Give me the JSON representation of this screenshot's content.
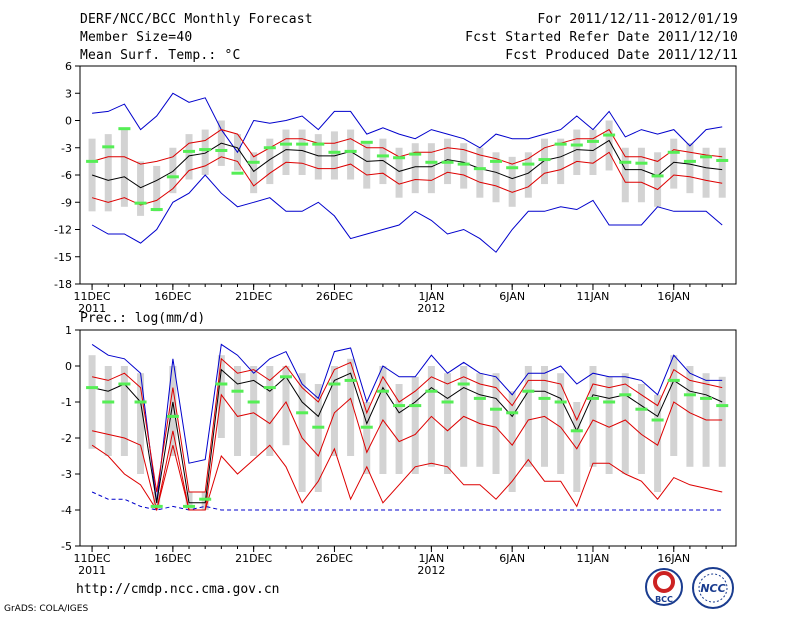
{
  "header": {
    "title": "DERF/NCC/BCC Monthly Forecast",
    "member": "Member Size=40",
    "variable": "Mean Surf. Temp.: °C",
    "range": "For 2011/12/11-2012/01/19",
    "started": "Fcst Started Refer Date 2011/12/10",
    "produced": "Fcst Produced Date 2011/12/11"
  },
  "footer": {
    "url": "http://cmdp.ncc.cma.gov.cn",
    "credit": "GrADS: COLA/IGES"
  },
  "logos": {
    "bcc": "BCC",
    "ncc": "NCC"
  },
  "colors": {
    "box": "#d3d3d3",
    "median": "#55ee55",
    "mean": "#000000",
    "inner": "#dd0000",
    "outer": "#0000cc"
  },
  "chart_data": [
    {
      "type": "box",
      "title": "Mean Surf. Temp.: °C",
      "ylim": [
        -18,
        6
      ],
      "yticks": [
        6,
        3,
        0,
        -3,
        -6,
        -9,
        -12,
        -15,
        -18
      ],
      "xtick_labels": [
        {
          "day": 1,
          "label": "11DEC",
          "sub": "2011"
        },
        {
          "day": 6,
          "label": "16DEC",
          "sub": ""
        },
        {
          "day": 11,
          "label": "21DEC",
          "sub": ""
        },
        {
          "day": 16,
          "label": "26DEC",
          "sub": ""
        },
        {
          "day": 22,
          "label": "1JAN",
          "sub": "2012"
        },
        {
          "day": 27,
          "label": "6JAN",
          "sub": ""
        },
        {
          "day": 32,
          "label": "11JAN",
          "sub": ""
        },
        {
          "day": 37,
          "label": "16JAN",
          "sub": ""
        }
      ],
      "days": 40,
      "mean": [
        -6.0,
        -6.6,
        -6.2,
        -7.4,
        -6.6,
        -5.6,
        -3.9,
        -3.6,
        -2.5,
        -3.0,
        -5.6,
        -4.3,
        -3.2,
        -3.3,
        -3.9,
        -3.9,
        -3.4,
        -4.5,
        -4.4,
        -5.6,
        -5.1,
        -5.1,
        -4.3,
        -4.6,
        -5.3,
        -5.7,
        -6.4,
        -5.8,
        -4.4,
        -4.0,
        -3.2,
        -3.3,
        -2.2,
        -5.4,
        -5.4,
        -6.1,
        -4.6,
        -4.8,
        -5.2,
        -5.4
      ],
      "upper_inner": [
        -4.5,
        -4.0,
        -4.0,
        -4.8,
        -4.5,
        -4.0,
        -2.5,
        -2.2,
        -1.0,
        -1.5,
        -4.0,
        -3.0,
        -2.0,
        -2.0,
        -2.5,
        -2.5,
        -2.0,
        -3.0,
        -3.0,
        -4.0,
        -3.5,
        -3.5,
        -3.0,
        -3.2,
        -3.8,
        -4.2,
        -4.8,
        -4.2,
        -3.0,
        -2.5,
        -2.0,
        -2.0,
        -1.0,
        -4.0,
        -4.0,
        -4.5,
        -3.2,
        -3.5,
        -3.8,
        -4.0
      ],
      "lower_inner": [
        -8.5,
        -9.0,
        -8.5,
        -9.3,
        -8.8,
        -7.5,
        -5.5,
        -5.0,
        -4.0,
        -4.5,
        -7.2,
        -5.8,
        -4.6,
        -4.7,
        -5.3,
        -5.3,
        -4.8,
        -6.0,
        -5.8,
        -7.0,
        -6.5,
        -6.6,
        -5.7,
        -6.0,
        -6.8,
        -7.2,
        -7.9,
        -7.3,
        -5.8,
        -5.4,
        -4.5,
        -4.7,
        -3.5,
        -6.8,
        -6.8,
        -7.6,
        -6.0,
        -6.2,
        -6.6,
        -6.9
      ],
      "upper_outer": [
        0.8,
        1.0,
        1.8,
        -1.0,
        0.5,
        3.0,
        2.0,
        2.5,
        -1.0,
        -3.5,
        0.0,
        -0.3,
        0.0,
        0.5,
        -1.0,
        1.0,
        1.0,
        -1.5,
        -0.8,
        -1.5,
        -2.0,
        -1.0,
        -1.5,
        -2.0,
        -3.0,
        -1.5,
        -2.0,
        -2.0,
        -1.5,
        -1.0,
        0.5,
        -1.0,
        1.0,
        -1.8,
        -1.0,
        -1.5,
        -1.0,
        -2.8,
        -1.0,
        -0.7
      ],
      "lower_outer": [
        -11.5,
        -12.5,
        -12.5,
        -13.5,
        -12.0,
        -9.0,
        -8.0,
        -6.0,
        -8.0,
        -9.5,
        -9.0,
        -8.5,
        -10.0,
        -10.0,
        -9.0,
        -10.5,
        -13.0,
        -12.5,
        -12.0,
        -11.5,
        -10.0,
        -11.0,
        -12.5,
        -12.0,
        -13.0,
        -14.5,
        -12.0,
        -10.0,
        -10.0,
        -9.5,
        -9.8,
        -8.8,
        -11.5,
        -11.5,
        -11.5,
        -9.5,
        -10.0,
        -10.0,
        -10.0,
        -11.5
      ],
      "box_top": [
        -2.0,
        -1.5,
        -1.0,
        -4.5,
        -5.0,
        -3.0,
        -1.5,
        -1.0,
        0.0,
        -1.5,
        -3.5,
        -2.0,
        -1.0,
        -1.0,
        -1.5,
        -1.2,
        -1.0,
        -2.5,
        -2.0,
        -3.0,
        -2.5,
        -2.5,
        -2.0,
        -2.5,
        -3.0,
        -3.5,
        -4.0,
        -3.5,
        -2.0,
        -2.0,
        -1.0,
        -1.0,
        0.0,
        -3.0,
        -3.0,
        -3.5,
        -2.0,
        -2.5,
        -3.0,
        -3.0
      ],
      "box_bottom": [
        -10.0,
        -10.0,
        -9.5,
        -10.5,
        -10.0,
        -8.0,
        -6.5,
        -6.0,
        -5.0,
        -5.5,
        -8.0,
        -7.0,
        -6.0,
        -6.0,
        -6.5,
        -6.5,
        -6.5,
        -7.5,
        -7.0,
        -8.5,
        -8.0,
        -8.0,
        -7.0,
        -7.5,
        -8.5,
        -9.0,
        -9.5,
        -8.5,
        -7.0,
        -7.0,
        -6.0,
        -6.0,
        -5.5,
        -9.0,
        -9.0,
        -9.5,
        -7.5,
        -8.0,
        -8.5,
        -8.5
      ],
      "median": [
        -4.5,
        -2.9,
        -0.9,
        -9.1,
        -9.8,
        -6.2,
        -3.4,
        -3.2,
        -3.3,
        -5.8,
        -4.6,
        -3.0,
        -2.6,
        -2.6,
        -2.6,
        -3.5,
        -3.4,
        -2.4,
        -3.9,
        -4.1,
        -3.7,
        -4.6,
        -4.6,
        -4.8,
        -5.3,
        -4.5,
        -5.2,
        -4.8,
        -4.3,
        -2.6,
        -2.7,
        -2.3,
        -1.6,
        -4.6,
        -4.7,
        -6.1,
        -3.5,
        -4.5,
        -4.0,
        -4.4
      ]
    },
    {
      "type": "box",
      "title": "Prec.: log(mm/d)",
      "ylim": [
        -5,
        1
      ],
      "yticks": [
        1,
        0,
        -1,
        -2,
        -3,
        -4,
        -5
      ],
      "xtick_labels": [
        {
          "day": 1,
          "label": "11DEC",
          "sub": "2011"
        },
        {
          "day": 6,
          "label": "16DEC",
          "sub": ""
        },
        {
          "day": 11,
          "label": "21DEC",
          "sub": ""
        },
        {
          "day": 16,
          "label": "26DEC",
          "sub": ""
        },
        {
          "day": 22,
          "label": "1JAN",
          "sub": "2012"
        },
        {
          "day": 27,
          "label": "6JAN",
          "sub": ""
        },
        {
          "day": 32,
          "label": "11JAN",
          "sub": ""
        },
        {
          "day": 37,
          "label": "16JAN",
          "sub": ""
        }
      ],
      "days": 40,
      "mean": [
        -0.6,
        -0.7,
        -0.5,
        -1.0,
        -3.8,
        -1.0,
        -3.8,
        -3.8,
        -0.1,
        -0.5,
        -0.4,
        -0.7,
        -0.3,
        -1.0,
        -1.4,
        -0.4,
        -0.2,
        -1.6,
        -0.6,
        -1.3,
        -1.0,
        -0.6,
        -0.9,
        -0.6,
        -0.8,
        -0.9,
        -1.4,
        -0.7,
        -0.7,
        -0.9,
        -1.8,
        -0.8,
        -0.9,
        -0.8,
        -1.1,
        -1.4,
        -0.4,
        -0.7,
        -0.8,
        -1.0
      ],
      "upper_inner": [
        -0.3,
        -0.4,
        -0.2,
        -0.6,
        -3.5,
        -0.6,
        -3.5,
        -3.5,
        0.2,
        -0.2,
        -0.1,
        -0.4,
        0.0,
        -0.6,
        -1.0,
        -0.1,
        0.1,
        -1.3,
        -0.3,
        -1.0,
        -0.7,
        -0.3,
        -0.5,
        -0.3,
        -0.5,
        -0.6,
        -1.1,
        -0.4,
        -0.4,
        -0.5,
        -1.5,
        -0.5,
        -0.6,
        -0.5,
        -0.8,
        -1.1,
        -0.1,
        -0.4,
        -0.5,
        -0.6
      ],
      "lower_inner": [
        -1.8,
        -1.9,
        -2.0,
        -2.2,
        -4.0,
        -1.8,
        -4.0,
        -4.0,
        -0.8,
        -1.4,
        -1.3,
        -1.6,
        -1.0,
        -2.0,
        -2.5,
        -1.3,
        -0.9,
        -2.4,
        -1.5,
        -2.1,
        -1.9,
        -1.4,
        -1.8,
        -1.4,
        -1.6,
        -1.7,
        -2.2,
        -1.5,
        -1.4,
        -1.7,
        -2.3,
        -1.5,
        -1.7,
        -1.5,
        -1.9,
        -2.2,
        -1.0,
        -1.3,
        -1.5,
        -1.5
      ],
      "lower_red": [
        -2.2,
        -2.5,
        -3.0,
        -3.3,
        -4.0,
        -2.2,
        -4.0,
        -4.0,
        -2.5,
        -3.0,
        -2.6,
        -2.2,
        -2.8,
        -3.8,
        -3.2,
        -2.3,
        -3.7,
        -2.8,
        -3.8,
        -3.3,
        -2.8,
        -2.7,
        -2.8,
        -3.3,
        -3.3,
        -3.7,
        -3.2,
        -2.6,
        -3.2,
        -3.2,
        -3.9,
        -2.7,
        -2.7,
        -3.0,
        -3.2,
        -3.7,
        -3.1,
        -3.3,
        -3.4,
        -3.5
      ],
      "upper_outer": [
        0.6,
        0.3,
        0.2,
        -0.2,
        -3.8,
        0.2,
        -2.7,
        -2.6,
        0.6,
        0.3,
        -0.2,
        0.2,
        0.4,
        -0.5,
        -0.9,
        0.4,
        0.5,
        -1.0,
        0.0,
        -0.3,
        -0.3,
        0.3,
        -0.2,
        0.1,
        -0.2,
        -0.3,
        -0.8,
        -0.2,
        -0.2,
        0.0,
        -0.5,
        -0.2,
        -0.3,
        -0.3,
        -0.4,
        -0.8,
        0.3,
        -0.2,
        -0.4,
        -0.4
      ],
      "lower_outer": [
        -3.5,
        -3.7,
        -3.7,
        -3.9,
        -4.0,
        -3.9,
        -4.0,
        -3.9,
        -4.0,
        -4.0,
        -4.0,
        -4.0,
        -4.0,
        -4.0,
        -4.0,
        -4.0,
        -4.0,
        -4.0,
        -4.0,
        -4.0,
        -4.0,
        -4.0,
        -4.0,
        -4.0,
        -4.0,
        -4.0,
        -4.0,
        -4.0,
        -4.0,
        -4.0,
        -4.0,
        -4.0,
        -4.0,
        -4.0,
        -4.0,
        -4.0,
        -4.0,
        -4.0,
        -4.0,
        -4.0
      ],
      "box_top": [
        0.3,
        0.0,
        0.0,
        -0.2,
        -3.5,
        0.0,
        -3.5,
        -3.5,
        0.3,
        0.0,
        0.0,
        0.0,
        0.0,
        -0.2,
        -0.5,
        0.0,
        0.2,
        -1.0,
        0.0,
        -0.5,
        -0.3,
        0.0,
        -0.2,
        0.0,
        -0.2,
        -0.2,
        -0.7,
        0.0,
        0.0,
        -0.2,
        -1.0,
        0.0,
        -0.3,
        -0.2,
        -0.5,
        -0.8,
        0.3,
        0.0,
        -0.2,
        -0.3
      ],
      "box_bottom": [
        -2.3,
        -2.5,
        -2.5,
        -3.0,
        -4.0,
        -2.5,
        -4.0,
        -4.0,
        -2.0,
        -2.5,
        -2.5,
        -2.5,
        -2.2,
        -3.5,
        -3.5,
        -2.5,
        -2.5,
        -3.0,
        -3.0,
        -3.0,
        -3.0,
        -2.8,
        -3.0,
        -2.8,
        -2.8,
        -3.0,
        -3.5,
        -2.8,
        -2.8,
        -3.0,
        -3.5,
        -2.8,
        -3.0,
        -3.0,
        -3.0,
        -3.5,
        -2.5,
        -2.8,
        -2.8,
        -2.8
      ],
      "median": [
        -0.6,
        -1.0,
        -0.5,
        -1.0,
        -3.9,
        -1.4,
        -3.9,
        -3.7,
        -0.5,
        -0.7,
        -1.0,
        -0.6,
        -0.3,
        -1.3,
        -1.7,
        -0.5,
        -0.4,
        -1.7,
        -0.7,
        -1.1,
        -1.1,
        -0.7,
        -1.0,
        -0.5,
        -0.9,
        -1.2,
        -1.3,
        -0.7,
        -0.9,
        -1.0,
        -1.8,
        -0.9,
        -1.0,
        -0.8,
        -1.2,
        -1.5,
        -0.4,
        -0.8,
        -0.9,
        -1.1
      ]
    }
  ]
}
